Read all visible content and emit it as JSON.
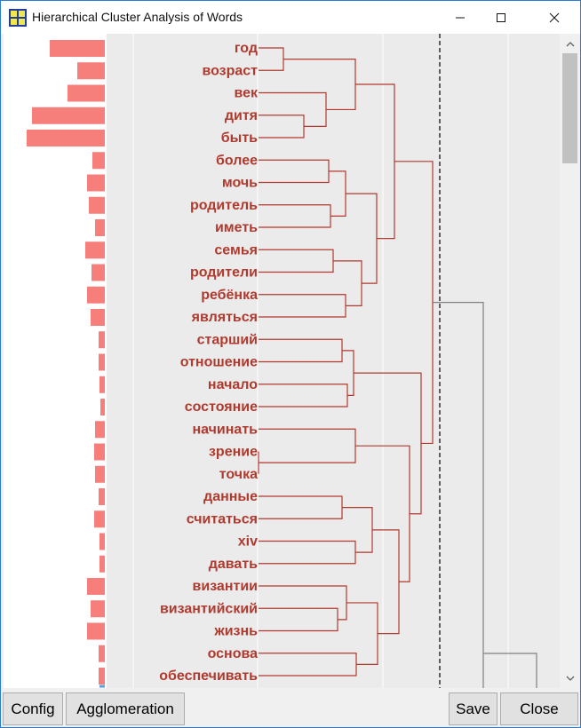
{
  "window": {
    "title": "Hierarchical Cluster Analysis of Words"
  },
  "titlebar_controls": [
    "minimize-icon",
    "maximize-icon",
    "close-icon"
  ],
  "colors": {
    "bar": "#f77f7b",
    "word": "#b03a2e",
    "cluster_line": "#b03a2e",
    "outer_line": "#808080",
    "panel": "#ebebeb",
    "threshold": "#000000"
  },
  "words": [
    "год",
    "возраст",
    "век",
    "дитя",
    "быть",
    "более",
    "мочь",
    "родитель",
    "иметь",
    "семья",
    "родители",
    "ребёнка",
    "являться",
    "старший",
    "отношение",
    "начало",
    "состояние",
    "начинать",
    "зрение",
    "точка",
    "данные",
    "считаться",
    "xiv",
    "давать",
    "византии",
    "византийский",
    "жизнь",
    "основа",
    "обесп­ечивать"
  ],
  "frequency_bars": [
    0.62,
    0.31,
    0.42,
    0.82,
    0.88,
    0.14,
    0.2,
    0.18,
    0.11,
    0.22,
    0.15,
    0.2,
    0.16,
    0.07,
    0.07,
    0.06,
    0.05,
    0.11,
    0.12,
    0.11,
    0.07,
    0.12,
    0.06,
    0.06,
    0.2,
    0.16,
    0.2,
    0.07,
    0.07
  ],
  "buttons": {
    "config": "Config",
    "agglomeration": "Agglomeration",
    "save": "Save",
    "close": "Close"
  }
}
